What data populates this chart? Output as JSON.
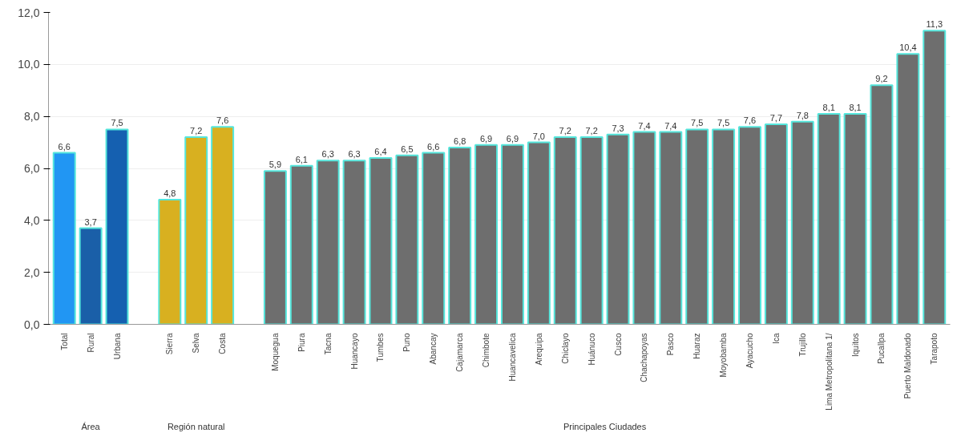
{
  "chart_data": {
    "type": "bar",
    "categories": [
      "Total",
      "Rural",
      "Urbana",
      null,
      "Sierra",
      "Selva",
      "Costa",
      null,
      "Moquegua",
      "Piura",
      "Tacna",
      "Huancayo",
      "Tumbes",
      "Puno",
      "Abancay",
      "Cajamarca",
      "Chimbote",
      "Huancavelica",
      "Arequipa",
      "Chiclayo",
      "Huánuco",
      "Cusco",
      "Chachapoyas",
      "Pasco",
      "Huaraz",
      "Moyobamba",
      "Ayacucho",
      "Ica",
      "Trujillo",
      "Lima Metropolitana 1/",
      "Iquitos",
      "Pucallpa",
      "Puerto Maldonado",
      "Tarapoto"
    ],
    "values": [
      6.6,
      3.7,
      7.5,
      null,
      4.8,
      7.2,
      7.6,
      null,
      5.9,
      6.1,
      6.3,
      6.3,
      6.4,
      6.5,
      6.6,
      6.8,
      6.9,
      6.9,
      7.0,
      7.2,
      7.2,
      7.3,
      7.4,
      7.4,
      7.5,
      7.5,
      7.6,
      7.7,
      7.8,
      8.1,
      8.1,
      9.2,
      10.4,
      11.3
    ],
    "value_labels": [
      "6,6",
      "3,7",
      "7,5",
      null,
      "4,8",
      "7,2",
      "7,6",
      null,
      "5,9",
      "6,1",
      "6,3",
      "6,3",
      "6,4",
      "6,5",
      "6,6",
      "6,8",
      "6,9",
      "6,9",
      "7,0",
      "7,2",
      "7,2",
      "7,3",
      "7,4",
      "7,4",
      "7,5",
      "7,5",
      "7,6",
      "7,7",
      "7,8",
      "8,1",
      "8,1",
      "9,2",
      "10,4",
      "11,3"
    ],
    "colors": [
      "#2196f3",
      "#1a5fa8",
      "#1560b0",
      null,
      "#d8b020",
      "#d8b020",
      "#d8b020",
      null,
      "#6e6e6e",
      "#6e6e6e",
      "#6e6e6e",
      "#6e6e6e",
      "#6e6e6e",
      "#6e6e6e",
      "#6e6e6e",
      "#6e6e6e",
      "#6e6e6e",
      "#6e6e6e",
      "#6e6e6e",
      "#6e6e6e",
      "#6e6e6e",
      "#6e6e6e",
      "#6e6e6e",
      "#6e6e6e",
      "#6e6e6e",
      "#6e6e6e",
      "#6e6e6e",
      "#6e6e6e",
      "#6e6e6e",
      "#6e6e6e",
      "#6e6e6e",
      "#6e6e6e",
      "#6e6e6e",
      "#6e6e6e"
    ],
    "ylim": [
      0,
      12
    ],
    "yticks": [
      {
        "value": 0,
        "label": "0,0"
      },
      {
        "value": 2,
        "label": "2,0"
      },
      {
        "value": 4,
        "label": "4,0"
      },
      {
        "value": 6,
        "label": "6,0"
      },
      {
        "value": 8,
        "label": "8,0"
      },
      {
        "value": 10,
        "label": "10,0"
      },
      {
        "value": 12,
        "label": "12,0"
      }
    ],
    "grid": "y",
    "annotations": [
      "Área",
      "Región natural",
      "Principales Ciudades"
    ]
  }
}
